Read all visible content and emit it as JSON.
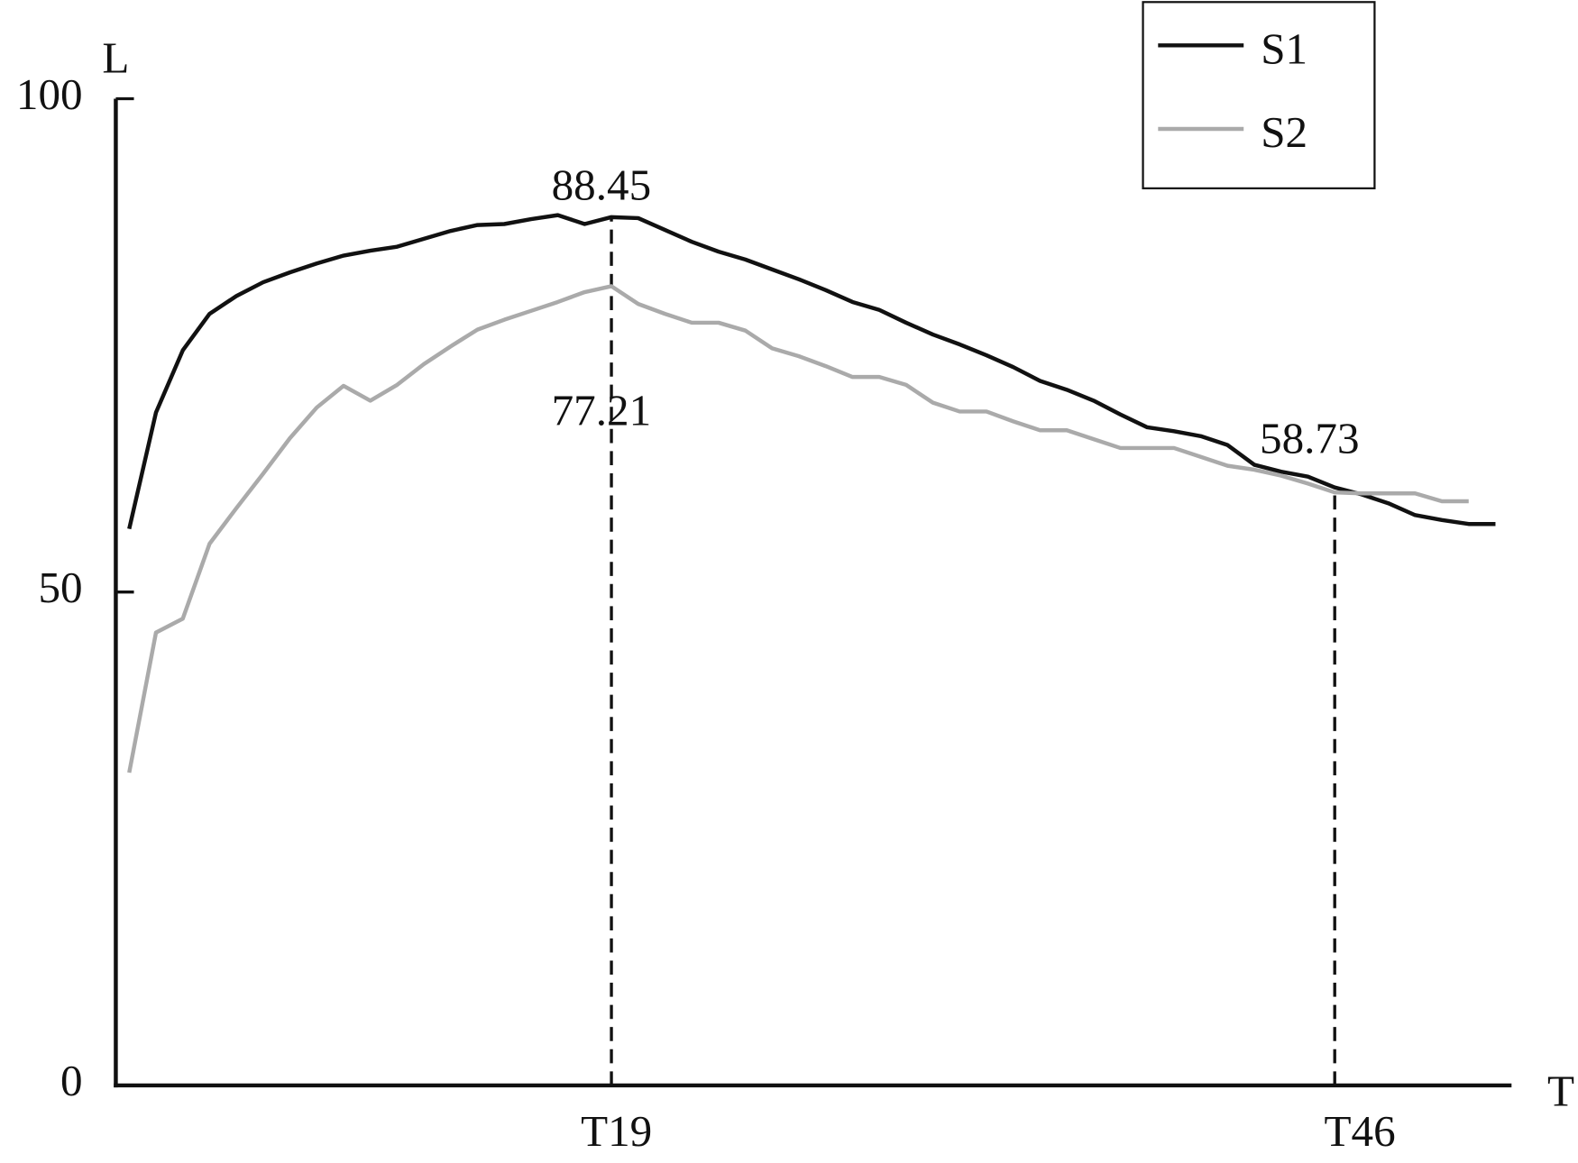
{
  "chart_data": {
    "type": "line",
    "x_label": "T",
    "y_label": "L",
    "x": [
      1,
      2,
      3,
      4,
      5,
      6,
      7,
      8,
      9,
      10,
      11,
      12,
      13,
      14,
      15,
      16,
      17,
      18,
      19,
      20,
      21,
      22,
      23,
      24,
      25,
      26,
      27,
      28,
      29,
      30,
      31,
      32,
      33,
      34,
      35,
      36,
      37,
      38,
      39,
      40,
      41,
      42,
      43,
      44,
      45,
      46,
      47,
      48,
      49,
      50,
      51,
      52
    ],
    "series": [
      {
        "name": "S1",
        "color": "#111111",
        "values": [
          56.4,
          68.2,
          74.5,
          78.2,
          80.0,
          81.4,
          82.4,
          83.3,
          84.1,
          84.6,
          85.0,
          85.8,
          86.6,
          87.2,
          87.3,
          87.8,
          88.2,
          87.3,
          88.0,
          87.9,
          86.7,
          85.5,
          84.5,
          83.7,
          82.7,
          81.7,
          80.6,
          79.4,
          78.6,
          77.3,
          76.1,
          75.1,
          74.0,
          72.8,
          71.4,
          70.5,
          69.4,
          68.0,
          66.7,
          66.3,
          65.8,
          64.9,
          62.9,
          62.2,
          61.7,
          60.6,
          59.9,
          59.0,
          57.8,
          57.3,
          56.9,
          56.9
        ]
      },
      {
        "name": "S2",
        "color": "#aaaaaa",
        "values": [
          31.7,
          45.9,
          47.3,
          54.9,
          58.5,
          62.0,
          65.6,
          68.7,
          70.9,
          69.4,
          71.0,
          73.1,
          74.9,
          76.6,
          77.6,
          78.5,
          79.4,
          80.4,
          81.0,
          79.2,
          78.2,
          77.3,
          77.3,
          76.5,
          74.7,
          73.9,
          72.9,
          71.8,
          71.8,
          71.0,
          69.2,
          68.3,
          68.3,
          67.3,
          66.4,
          66.4,
          65.5,
          64.6,
          64.6,
          64.6,
          63.7,
          62.8,
          62.4,
          61.8,
          61.0,
          60.1,
          60.0,
          60.0,
          60.0,
          59.2,
          59.2,
          null
        ]
      }
    ],
    "xlim": [
      0.5,
      52.6
    ],
    "xticks": [
      {
        "value": 19,
        "label": "T19"
      },
      {
        "value": 46,
        "label": "T46"
      }
    ],
    "ylim": [
      0,
      100
    ],
    "yticks": [
      0,
      50,
      100
    ],
    "annotations": [
      {
        "x": 19,
        "text": "88.45"
      },
      {
        "x": 19,
        "text": "77.21"
      },
      {
        "x": 46,
        "text": "58.73"
      }
    ],
    "legend": "upper right"
  }
}
